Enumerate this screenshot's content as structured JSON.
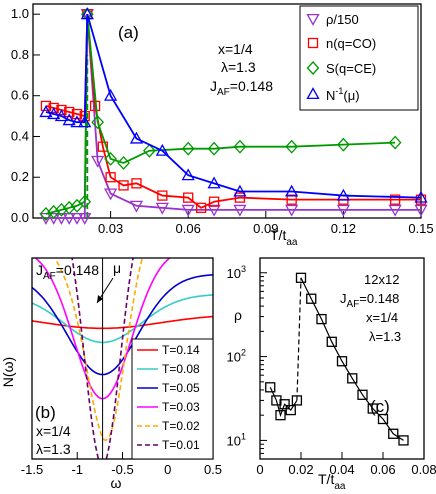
{
  "chart_data": [
    {
      "type": "line",
      "panel_label": "(a)",
      "xlabel": "T/t",
      "xlabel_sub": "aa",
      "xlim": [
        0,
        0.15
      ],
      "ylim": [
        0,
        1.05
      ],
      "xticks": [
        0.03,
        0.06,
        0.09,
        0.12,
        0.15
      ],
      "yticks": [
        0.0,
        0.2,
        0.4,
        0.6,
        0.8,
        1.0
      ],
      "xtick_labels": [
        "0.03",
        "0.06",
        "0.09",
        "0.12",
        "0.15"
      ],
      "ytick_labels": [
        "0.0",
        "0.2",
        "0.4",
        "0.6",
        "0.8",
        "1.0"
      ],
      "annotations": [
        "x=1/4",
        "λ=1.3",
        "J",
        "AF",
        "=0.148"
      ],
      "transition_T": 0.021,
      "legend_position": "top-right",
      "series": [
        {
          "name": "ρ/150",
          "marker": "triangle-down",
          "color": "#9933cc",
          "x": [
            0.005,
            0.008,
            0.011,
            0.014,
            0.017,
            0.02,
            0.021,
            0.025,
            0.03,
            0.04,
            0.05,
            0.06,
            0.07,
            0.08,
            0.1,
            0.12,
            0.14,
            0.15
          ],
          "y": [
            0.0,
            0.0,
            0.0,
            0.0,
            0.0,
            0.0,
            1.0,
            0.28,
            0.12,
            0.06,
            0.05,
            0.04,
            0.04,
            0.04,
            0.04,
            0.04,
            0.04,
            0.04
          ]
        },
        {
          "name": "n(q=CO)",
          "marker": "square",
          "color": "#ff0000",
          "x": [
            0.005,
            0.008,
            0.011,
            0.014,
            0.017,
            0.02,
            0.021,
            0.024,
            0.027,
            0.03,
            0.035,
            0.04,
            0.05,
            0.06,
            0.065,
            0.07,
            0.08,
            0.1,
            0.12,
            0.14,
            0.15
          ],
          "y": [
            0.55,
            0.54,
            0.53,
            0.52,
            0.51,
            0.5,
            1.0,
            0.55,
            0.35,
            0.2,
            0.16,
            0.17,
            0.11,
            0.1,
            0.05,
            0.08,
            0.1,
            0.09,
            0.09,
            0.09,
            0.09
          ]
        },
        {
          "name": "S(q=CE)",
          "marker": "diamond",
          "color": "#009900",
          "x": [
            0.005,
            0.008,
            0.011,
            0.014,
            0.017,
            0.02,
            0.021,
            0.025,
            0.03,
            0.035,
            0.045,
            0.06,
            0.07,
            0.08,
            0.1,
            0.12,
            0.14
          ],
          "y": [
            0.02,
            0.03,
            0.04,
            0.05,
            0.06,
            0.08,
            1.0,
            0.47,
            0.29,
            0.27,
            0.33,
            0.34,
            0.34,
            0.35,
            0.35,
            0.36,
            0.37
          ]
        },
        {
          "name": "N",
          "name_sup": "-1",
          "name_tail": "(μ)",
          "marker": "triangle-up",
          "color": "#0000ff",
          "x": [
            0.005,
            0.008,
            0.011,
            0.014,
            0.017,
            0.02,
            0.021,
            0.03,
            0.04,
            0.05,
            0.06,
            0.07,
            0.08,
            0.1,
            0.12,
            0.15
          ],
          "y": [
            0.52,
            0.51,
            0.5,
            0.48,
            0.47,
            0.47,
            1.0,
            0.6,
            0.39,
            0.33,
            0.21,
            0.17,
            0.13,
            0.13,
            0.11,
            0.1
          ]
        }
      ]
    },
    {
      "type": "line",
      "panel_label": "(b)",
      "xlabel": "ω",
      "ylabel": "N(ω)",
      "xlim": [
        -1.5,
        0.5
      ],
      "ylim": [
        0,
        1
      ],
      "xticks": [
        -1.5,
        -1.0,
        -0.5,
        0.0,
        0.5
      ],
      "xtick_labels": [
        "-1.5",
        "-1",
        "-0.5",
        "0",
        "0.5"
      ],
      "annotations": [
        "J",
        "AF",
        "=0.148",
        "μ",
        "x=1/4",
        "λ=1.3"
      ],
      "mu_position": -0.72,
      "legend_position": "bottom-right",
      "series": [
        {
          "name": "T=0.14",
          "color": "#ff0000",
          "style": "solid"
        },
        {
          "name": "T=0.08",
          "color": "#33cccc",
          "style": "solid"
        },
        {
          "name": "T=0.05",
          "color": "#0000cc",
          "style": "solid"
        },
        {
          "name": "T=0.03",
          "color": "#ff00ff",
          "style": "solid"
        },
        {
          "name": "T=0.02",
          "color": "#ffaa00",
          "style": "dashed"
        },
        {
          "name": "T=0.01",
          "color": "#660066",
          "style": "dashed"
        }
      ]
    },
    {
      "type": "line",
      "panel_label": "(c)",
      "xlabel": "T/t",
      "xlabel_sub": "aa",
      "ylabel": "ρ",
      "scale_y": "log",
      "xlim": [
        0,
        0.08
      ],
      "ylim": [
        6,
        1500
      ],
      "xticks": [
        0,
        0.02,
        0.04,
        0.06,
        0.08
      ],
      "xtick_labels": [
        "0",
        "0.02",
        "0.04",
        "0.06",
        "0.08"
      ],
      "yticks": [
        10,
        100,
        1000
      ],
      "ytick_base": "10",
      "ytick_exps": [
        "1",
        "2",
        "3"
      ],
      "annotations": [
        "12x12",
        "J",
        "AF",
        "=0.148",
        "x=1/4",
        "λ=1.3"
      ],
      "series": [
        {
          "name": "ρ",
          "marker": "square",
          "color": "#000000",
          "x": [
            0.005,
            0.008,
            0.01,
            0.012,
            0.015,
            0.018,
            0.02,
            0.025,
            0.03,
            0.035,
            0.04,
            0.045,
            0.05,
            0.055,
            0.06,
            0.065,
            0.07
          ],
          "y": [
            43,
            30,
            20,
            27,
            23,
            30,
            870,
            490,
            280,
            150,
            88,
            55,
            35,
            24,
            18,
            12,
            10
          ]
        }
      ]
    }
  ]
}
